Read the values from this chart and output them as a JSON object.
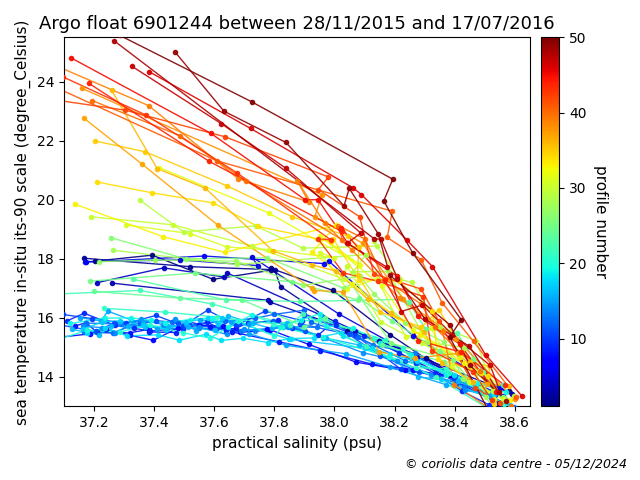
{
  "title": "Argo float 6901244 between 28/11/2015 and 17/07/2016",
  "xlabel": "practical salinity (psu)",
  "ylabel": "sea temperature in-situ its-90 scale (degree_Celsius)",
  "colorbar_label": "profile number",
  "copyright": "© coriolis data centre - 05/12/2024",
  "xlim": [
    37.1,
    38.65
  ],
  "ylim": [
    13.0,
    25.5
  ],
  "xticks": [
    37.2,
    37.4,
    37.6,
    37.8,
    38.0,
    38.2,
    38.4,
    38.6
  ],
  "yticks": [
    14,
    16,
    18,
    20,
    22,
    24
  ],
  "cmap": "jet",
  "vmin": 1,
  "vmax": 50,
  "colorbar_ticks": [
    10,
    20,
    30,
    40,
    50
  ],
  "n_profiles": 50,
  "markersize": 3,
  "linewidth": 1.0,
  "title_fontsize": 13,
  "label_fontsize": 11,
  "copyright_fontsize": 9
}
